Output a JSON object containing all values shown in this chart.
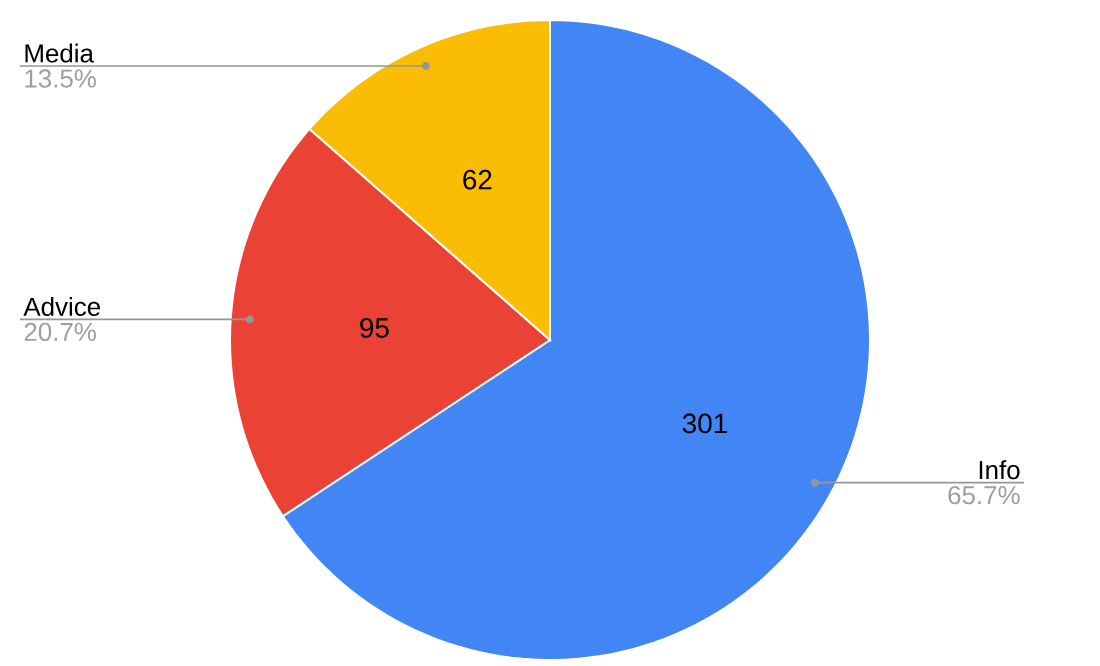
{
  "chart_data": {
    "type": "pie",
    "categories": [
      "Info",
      "Advice",
      "Media"
    ],
    "values": [
      301,
      95,
      62
    ],
    "colors": [
      "#4285f4",
      "#ea4335",
      "#fbbc04"
    ],
    "data_labels": true,
    "annotations": [
      {
        "text": "65.7%",
        "x": "Info"
      },
      {
        "text": "20.7%",
        "x": "Advice"
      },
      {
        "text": "13.5%",
        "x": "Media"
      }
    ]
  }
}
